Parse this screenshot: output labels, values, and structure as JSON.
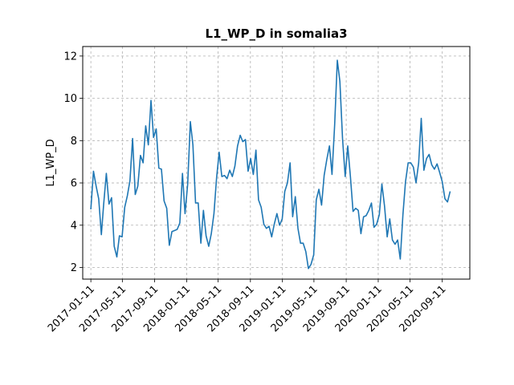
{
  "chart_data": {
    "type": "line",
    "title": "L1_WP_D in somalia3",
    "xlabel": "",
    "ylabel": "L1_WP_D",
    "x_ticks": [
      "2017-01-11",
      "2017-05-11",
      "2017-09-11",
      "2018-01-11",
      "2018-05-11",
      "2018-09-11",
      "2019-01-11",
      "2019-05-11",
      "2019-09-11",
      "2020-01-11",
      "2020-05-11",
      "2020-09-11"
    ],
    "y_ticks": [
      2,
      4,
      6,
      8,
      10,
      12
    ],
    "xlim": [
      "2016-12-11",
      "2020-12-25"
    ],
    "ylim": [
      1.45,
      12.45
    ],
    "grid": true,
    "grid_style": "dashed",
    "series": [
      {
        "color": "#1f77b4",
        "points": [
          [
            "2017-01-11",
            4.75
          ],
          [
            "2017-01-21",
            6.55
          ],
          [
            "2017-01-31",
            5.85
          ],
          [
            "2017-02-10",
            5.25
          ],
          [
            "2017-02-20",
            3.55
          ],
          [
            "2017-03-01",
            5.0
          ],
          [
            "2017-03-11",
            6.45
          ],
          [
            "2017-03-21",
            5.0
          ],
          [
            "2017-03-31",
            5.3
          ],
          [
            "2017-04-10",
            3.0
          ],
          [
            "2017-04-20",
            2.5
          ],
          [
            "2017-04-30",
            3.5
          ],
          [
            "2017-05-10",
            3.45
          ],
          [
            "2017-05-20",
            4.85
          ],
          [
            "2017-05-30",
            5.4
          ],
          [
            "2017-06-09",
            6.1
          ],
          [
            "2017-06-19",
            8.1
          ],
          [
            "2017-06-29",
            5.45
          ],
          [
            "2017-07-09",
            5.85
          ],
          [
            "2017-07-19",
            7.3
          ],
          [
            "2017-07-29",
            6.95
          ],
          [
            "2017-08-08",
            8.7
          ],
          [
            "2017-08-18",
            7.8
          ],
          [
            "2017-08-28",
            9.9
          ],
          [
            "2017-09-07",
            8.15
          ],
          [
            "2017-09-17",
            8.55
          ],
          [
            "2017-09-27",
            6.7
          ],
          [
            "2017-10-07",
            6.65
          ],
          [
            "2017-10-17",
            5.15
          ],
          [
            "2017-10-27",
            4.8
          ],
          [
            "2017-11-06",
            3.05
          ],
          [
            "2017-11-16",
            3.7
          ],
          [
            "2017-11-26",
            3.75
          ],
          [
            "2017-12-06",
            3.8
          ],
          [
            "2017-12-16",
            4.1
          ],
          [
            "2017-12-26",
            6.45
          ],
          [
            "2018-01-05",
            4.55
          ],
          [
            "2018-01-15",
            5.95
          ],
          [
            "2018-01-25",
            8.9
          ],
          [
            "2018-02-04",
            7.8
          ],
          [
            "2018-02-14",
            5.05
          ],
          [
            "2018-02-24",
            5.05
          ],
          [
            "2018-03-06",
            3.15
          ],
          [
            "2018-03-16",
            4.7
          ],
          [
            "2018-03-26",
            3.5
          ],
          [
            "2018-04-05",
            3.0
          ],
          [
            "2018-04-15",
            3.6
          ],
          [
            "2018-04-25",
            4.55
          ],
          [
            "2018-05-05",
            6.25
          ],
          [
            "2018-05-15",
            7.45
          ],
          [
            "2018-05-25",
            6.3
          ],
          [
            "2018-06-04",
            6.35
          ],
          [
            "2018-06-14",
            6.2
          ],
          [
            "2018-06-24",
            6.6
          ],
          [
            "2018-07-04",
            6.3
          ],
          [
            "2018-07-14",
            6.8
          ],
          [
            "2018-07-24",
            7.75
          ],
          [
            "2018-08-03",
            8.25
          ],
          [
            "2018-08-13",
            7.95
          ],
          [
            "2018-08-23",
            8.05
          ],
          [
            "2018-09-02",
            6.55
          ],
          [
            "2018-09-12",
            7.15
          ],
          [
            "2018-09-22",
            6.4
          ],
          [
            "2018-10-02",
            7.55
          ],
          [
            "2018-10-12",
            5.2
          ],
          [
            "2018-10-22",
            4.85
          ],
          [
            "2018-11-01",
            4.05
          ],
          [
            "2018-11-11",
            3.85
          ],
          [
            "2018-11-21",
            3.95
          ],
          [
            "2018-12-01",
            3.45
          ],
          [
            "2018-12-11",
            4.05
          ],
          [
            "2018-12-21",
            4.55
          ],
          [
            "2018-12-31",
            4.0
          ],
          [
            "2019-01-10",
            4.3
          ],
          [
            "2019-01-20",
            5.6
          ],
          [
            "2019-01-30",
            6.0
          ],
          [
            "2019-02-09",
            6.95
          ],
          [
            "2019-02-19",
            4.4
          ],
          [
            "2019-03-01",
            5.35
          ],
          [
            "2019-03-11",
            3.85
          ],
          [
            "2019-03-21",
            3.15
          ],
          [
            "2019-03-31",
            3.15
          ],
          [
            "2019-04-10",
            2.75
          ],
          [
            "2019-04-20",
            1.95
          ],
          [
            "2019-04-30",
            2.15
          ],
          [
            "2019-05-10",
            2.6
          ],
          [
            "2019-05-20",
            5.2
          ],
          [
            "2019-05-30",
            5.7
          ],
          [
            "2019-06-09",
            4.95
          ],
          [
            "2019-06-19",
            6.35
          ],
          [
            "2019-06-29",
            7.1
          ],
          [
            "2019-07-09",
            7.75
          ],
          [
            "2019-07-19",
            6.4
          ],
          [
            "2019-07-29",
            8.75
          ],
          [
            "2019-08-08",
            11.8
          ],
          [
            "2019-08-18",
            10.8
          ],
          [
            "2019-08-28",
            8.1
          ],
          [
            "2019-09-07",
            6.3
          ],
          [
            "2019-09-17",
            7.75
          ],
          [
            "2019-09-27",
            6.3
          ],
          [
            "2019-10-07",
            4.65
          ],
          [
            "2019-10-17",
            4.8
          ],
          [
            "2019-10-27",
            4.7
          ],
          [
            "2019-11-06",
            3.6
          ],
          [
            "2019-11-16",
            4.4
          ],
          [
            "2019-11-26",
            4.45
          ],
          [
            "2019-12-06",
            4.7
          ],
          [
            "2019-12-16",
            5.05
          ],
          [
            "2019-12-26",
            3.9
          ],
          [
            "2020-01-05",
            4.05
          ],
          [
            "2020-01-15",
            4.5
          ],
          [
            "2020-01-25",
            5.95
          ],
          [
            "2020-02-04",
            4.9
          ],
          [
            "2020-02-14",
            3.45
          ],
          [
            "2020-02-24",
            4.3
          ],
          [
            "2020-03-05",
            3.3
          ],
          [
            "2020-03-15",
            3.1
          ],
          [
            "2020-03-25",
            3.3
          ],
          [
            "2020-04-04",
            2.4
          ],
          [
            "2020-04-14",
            4.5
          ],
          [
            "2020-04-24",
            6.05
          ],
          [
            "2020-05-04",
            6.95
          ],
          [
            "2020-05-14",
            6.95
          ],
          [
            "2020-05-24",
            6.75
          ],
          [
            "2020-06-03",
            6.0
          ],
          [
            "2020-06-13",
            6.95
          ],
          [
            "2020-06-23",
            9.05
          ],
          [
            "2020-07-03",
            6.6
          ],
          [
            "2020-07-13",
            7.15
          ],
          [
            "2020-07-23",
            7.35
          ],
          [
            "2020-08-02",
            6.85
          ],
          [
            "2020-08-12",
            6.65
          ],
          [
            "2020-08-22",
            6.9
          ],
          [
            "2020-09-01",
            6.5
          ],
          [
            "2020-09-11",
            6.05
          ],
          [
            "2020-09-21",
            5.25
          ],
          [
            "2020-10-01",
            5.1
          ],
          [
            "2020-10-11",
            5.6
          ]
        ]
      }
    ]
  }
}
